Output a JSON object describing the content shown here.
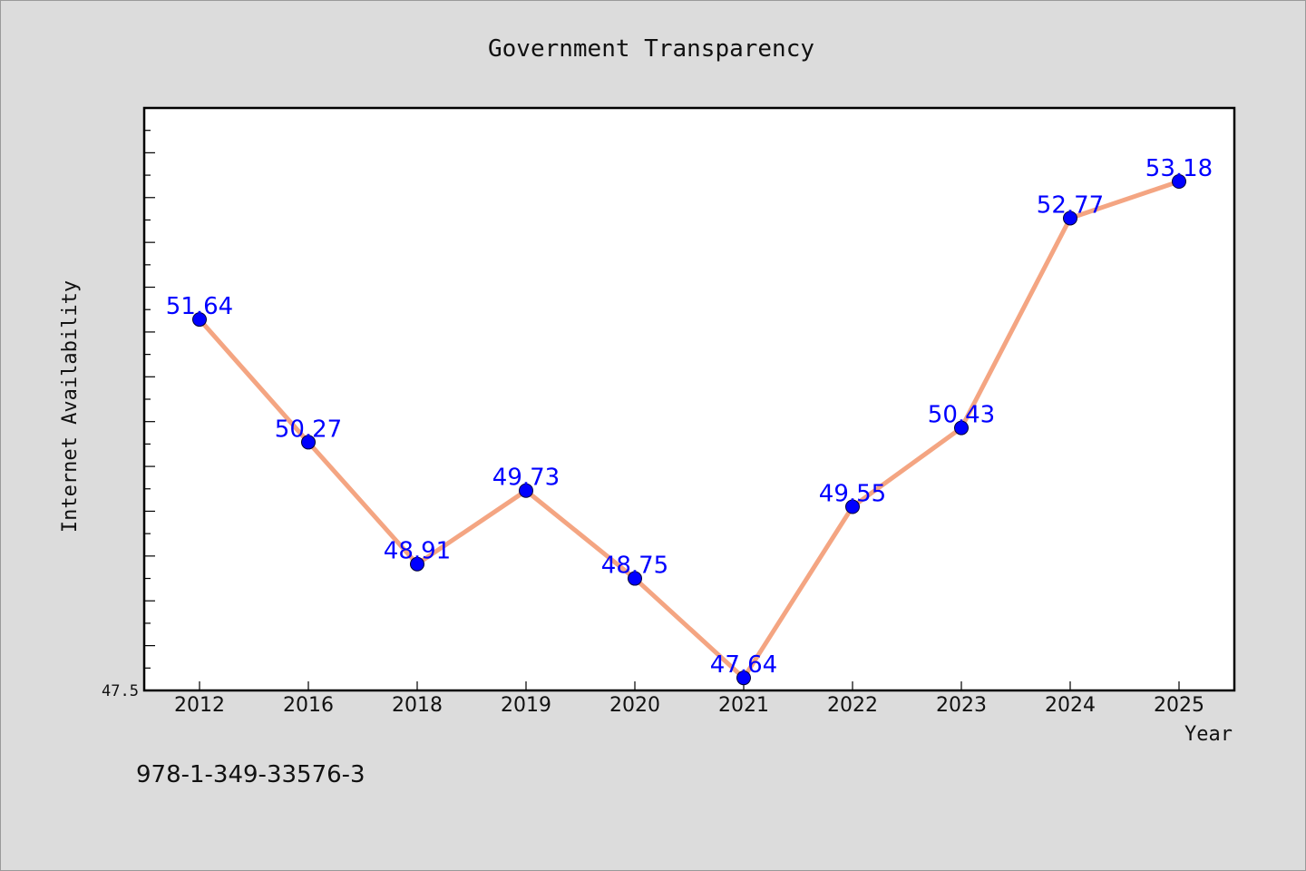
{
  "chart_data": {
    "type": "line",
    "title": "Government Transparency",
    "xlabel": "Year",
    "ylabel": "Internet Availability",
    "categories": [
      "2012",
      "2016",
      "2018",
      "2019",
      "2020",
      "2021",
      "2022",
      "2023",
      "2024",
      "2025"
    ],
    "series": [
      {
        "values": [
          51.64,
          50.27,
          48.91,
          49.73,
          48.75,
          47.64,
          49.55,
          50.43,
          52.77,
          53.18
        ],
        "labels": [
          "51.64",
          "50.27",
          "48.91",
          "49.73",
          "48.75",
          "47.64",
          "49.55",
          "50.43",
          "52.77",
          "53.18"
        ]
      }
    ],
    "ylim": [
      47.5,
      54.0
    ],
    "yticks_labeled": [
      "47.5"
    ],
    "grid": false,
    "legend": "none",
    "colors": {
      "line": "#f4a582",
      "marker": "#0000ff",
      "label": "#0000ff",
      "plot_bg": "#ffffff",
      "page_bg": "#dcdcdc"
    }
  },
  "footer": {
    "text": "978-1-349-33576-3"
  }
}
